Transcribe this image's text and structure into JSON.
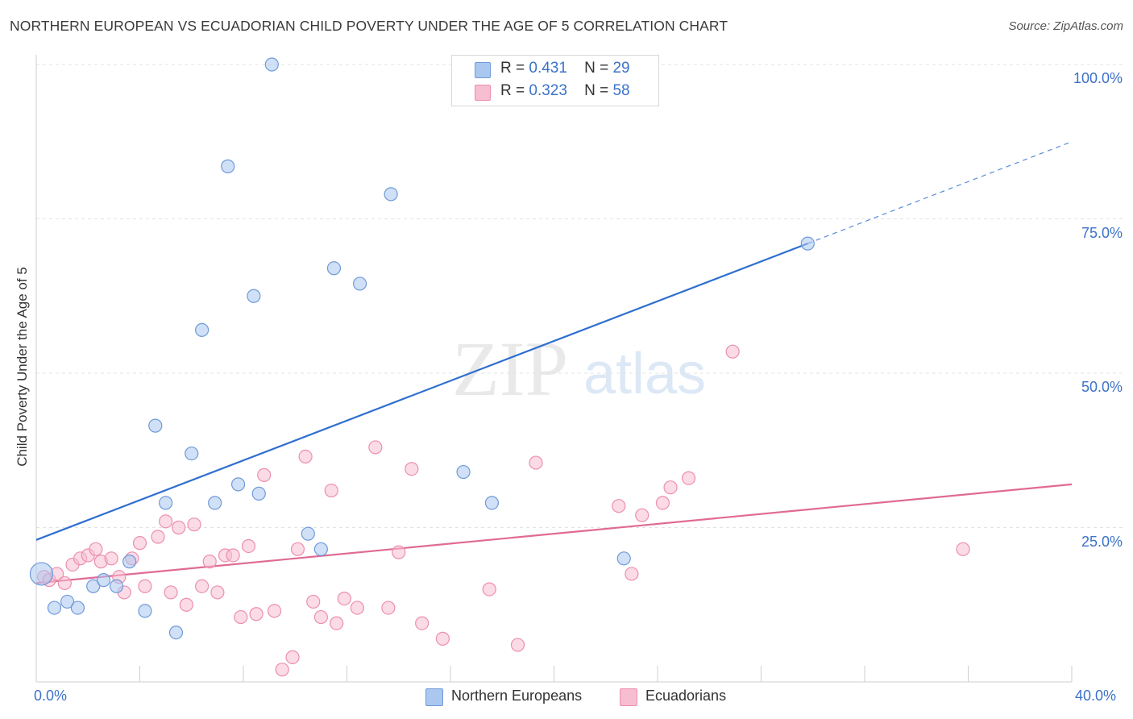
{
  "header": {
    "title": "NORTHERN EUROPEAN VS ECUADORIAN CHILD POVERTY UNDER THE AGE OF 5 CORRELATION CHART",
    "source": "Source: ZipAtlas.com"
  },
  "watermark": {
    "zip": "ZIP",
    "atlas": "atlas"
  },
  "legend": {
    "rows": [
      {
        "r_label": "R =",
        "r_value": "0.431",
        "n_label": "N =",
        "n_value": "29"
      },
      {
        "r_label": "R =",
        "r_value": "0.323",
        "n_label": "N =",
        "n_value": "58"
      }
    ]
  },
  "bottom_legend": [
    "Northern Europeans",
    "Ecuadorians"
  ],
  "colors": {
    "blue_fill": "#aac7ef",
    "blue_stroke": "#6f9ad9",
    "blue_line": "#2f6fcf",
    "pink_fill": "#f7bdd0",
    "pink_stroke": "#ec8fad",
    "pink_line": "#e06a94",
    "grid": "#e3e3e3",
    "tick_text": "#3b72c9"
  },
  "chart_data": {
    "type": "scatter",
    "title": "NORTHERN EUROPEAN VS ECUADORIAN CHILD POVERTY UNDER THE AGE OF 5 CORRELATION CHART",
    "xlabel": "",
    "ylabel": "Child Poverty Under the Age of 5",
    "xlim": [
      0,
      40
    ],
    "ylim": [
      0,
      100
    ],
    "x_tick_labels": [
      "0.0%",
      "40.0%"
    ],
    "y_ticks": [
      25,
      50,
      75,
      100
    ],
    "y_tick_labels": [
      "25.0%",
      "50.0%",
      "75.0%",
      "100.0%"
    ],
    "grid": true,
    "legend_position": "top-center",
    "series": [
      {
        "name": "Northern Europeans",
        "color": "#aac7ef",
        "r": "0.431",
        "n": "29",
        "points": [
          [
            0.2,
            17.5
          ],
          [
            0.7,
            12.0
          ],
          [
            1.2,
            13.0
          ],
          [
            1.6,
            12.0
          ],
          [
            2.2,
            15.5
          ],
          [
            2.6,
            16.5
          ],
          [
            3.1,
            15.5
          ],
          [
            3.6,
            19.5
          ],
          [
            4.2,
            11.5
          ],
          [
            4.6,
            41.5
          ],
          [
            5.0,
            29.0
          ],
          [
            5.4,
            8.0
          ],
          [
            6.0,
            37.0
          ],
          [
            6.4,
            57.0
          ],
          [
            6.9,
            29.0
          ],
          [
            7.4,
            83.5
          ],
          [
            7.8,
            32.0
          ],
          [
            8.4,
            62.5
          ],
          [
            8.6,
            30.5
          ],
          [
            9.1,
            100.0
          ],
          [
            10.5,
            24.0
          ],
          [
            11.0,
            21.5
          ],
          [
            11.5,
            67.0
          ],
          [
            12.5,
            64.5
          ],
          [
            13.7,
            79.0
          ],
          [
            16.5,
            34.0
          ],
          [
            17.6,
            29.0
          ],
          [
            22.7,
            20.0
          ],
          [
            29.8,
            71.0
          ]
        ],
        "trend": {
          "x1": 0,
          "y1": 23.0,
          "x2": 29.8,
          "y2": 71.0,
          "dash_to_x": 40,
          "dash_to_y": 87.5
        }
      },
      {
        "name": "Ecuadorians",
        "color": "#f7bdd0",
        "r": "0.323",
        "n": "58",
        "points": [
          [
            0.3,
            17.0
          ],
          [
            0.5,
            16.5
          ],
          [
            0.8,
            17.5
          ],
          [
            1.1,
            16.0
          ],
          [
            1.4,
            19.0
          ],
          [
            1.7,
            20.0
          ],
          [
            2.0,
            20.5
          ],
          [
            2.3,
            21.5
          ],
          [
            2.5,
            19.5
          ],
          [
            2.9,
            20.0
          ],
          [
            3.2,
            17.0
          ],
          [
            3.4,
            14.5
          ],
          [
            3.7,
            20.0
          ],
          [
            4.0,
            22.5
          ],
          [
            4.2,
            15.5
          ],
          [
            4.7,
            23.5
          ],
          [
            5.0,
            26.0
          ],
          [
            5.2,
            14.5
          ],
          [
            5.5,
            25.0
          ],
          [
            5.8,
            12.5
          ],
          [
            6.1,
            25.5
          ],
          [
            6.4,
            15.5
          ],
          [
            6.7,
            19.5
          ],
          [
            7.0,
            14.5
          ],
          [
            7.3,
            20.5
          ],
          [
            7.6,
            20.5
          ],
          [
            7.9,
            10.5
          ],
          [
            8.2,
            22.0
          ],
          [
            8.5,
            11.0
          ],
          [
            8.8,
            33.5
          ],
          [
            9.2,
            11.5
          ],
          [
            9.5,
            2.0
          ],
          [
            9.9,
            4.0
          ],
          [
            10.1,
            21.5
          ],
          [
            10.4,
            36.5
          ],
          [
            10.7,
            13.0
          ],
          [
            11.0,
            10.5
          ],
          [
            11.4,
            31.0
          ],
          [
            11.6,
            9.5
          ],
          [
            11.9,
            13.5
          ],
          [
            12.4,
            12.0
          ],
          [
            13.1,
            38.0
          ],
          [
            13.6,
            12.0
          ],
          [
            14.0,
            21.0
          ],
          [
            14.5,
            34.5
          ],
          [
            14.9,
            9.5
          ],
          [
            15.7,
            7.0
          ],
          [
            17.5,
            15.0
          ],
          [
            18.6,
            6.0
          ],
          [
            19.3,
            35.5
          ],
          [
            22.5,
            28.5
          ],
          [
            23.0,
            17.5
          ],
          [
            23.4,
            27.0
          ],
          [
            24.2,
            29.0
          ],
          [
            24.5,
            31.5
          ],
          [
            25.2,
            33.0
          ],
          [
            26.9,
            53.5
          ],
          [
            35.8,
            21.5
          ]
        ],
        "trend": {
          "x1": 0,
          "y1": 16.0,
          "x2": 40,
          "y2": 32.0
        }
      }
    ]
  }
}
